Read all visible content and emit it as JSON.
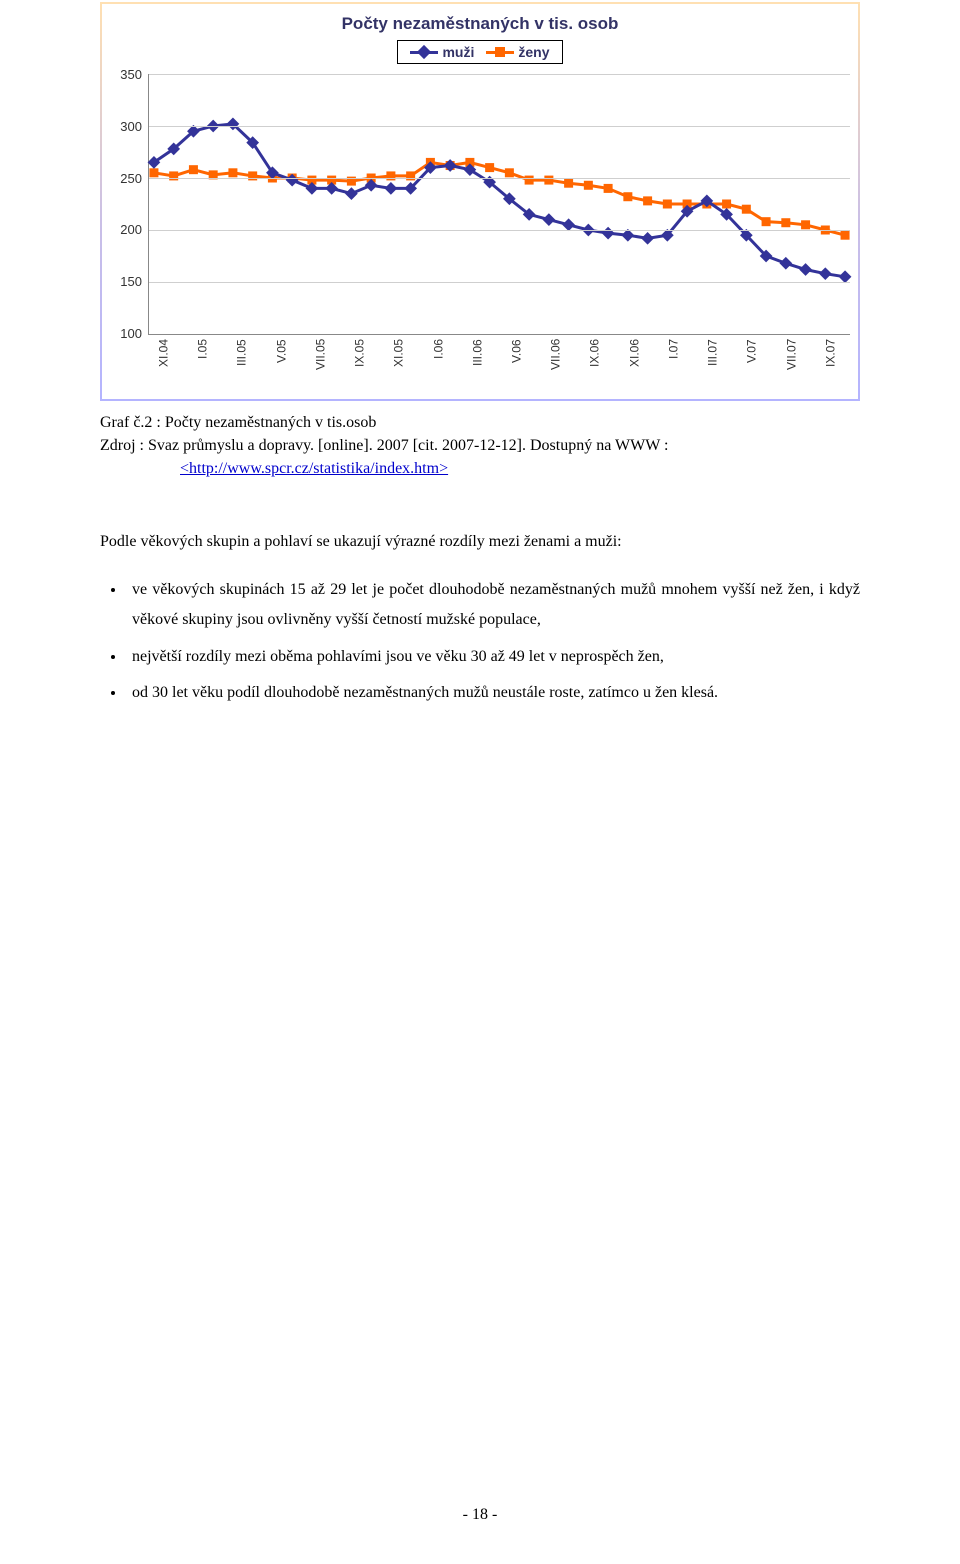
{
  "chart": {
    "type": "line",
    "title": "Počty nezaměstnaných v tis. osob",
    "title_fontsize": 17,
    "title_color": "#333366",
    "border_gradient": [
      "#ffe0b2",
      "#cabfe6",
      "#b4b4ff"
    ],
    "background_color": "#ffffff",
    "legend": {
      "items": [
        {
          "label": "muži",
          "color": "#333399",
          "marker": "diamond"
        },
        {
          "label": "ženy",
          "color": "#ff6600",
          "marker": "square"
        }
      ],
      "border_color": "#000000",
      "font_color": "#333366",
      "fontsize": 14
    },
    "y_axis": {
      "min": 100,
      "max": 350,
      "tick_step": 50,
      "ticks": [
        100,
        150,
        200,
        250,
        300,
        350
      ],
      "label_fontsize": 13,
      "grid_color": "#cfcfcf"
    },
    "x_axis": {
      "labels": [
        "XI.04",
        "I.05",
        "III.05",
        "V.05",
        "VII.05",
        "IX.05",
        "XI.05",
        "I.06",
        "III.06",
        "V.06",
        "VII.06",
        "IX.06",
        "XI.06",
        "I.07",
        "III.07",
        "V.07",
        "VII.07",
        "IX.07"
      ],
      "per_label_points": 2,
      "label_fontsize": 12
    },
    "series": {
      "muzi": {
        "color": "#333399",
        "line_width": 3,
        "marker": "diamond",
        "marker_size": 9,
        "values": [
          265,
          278,
          295,
          300,
          302,
          284,
          255,
          248,
          240,
          240,
          235,
          243,
          240,
          240,
          260,
          262,
          258,
          246,
          230,
          215,
          210,
          205,
          200,
          197,
          195,
          192,
          195,
          218,
          228,
          215,
          195,
          175,
          168,
          162,
          158,
          155
        ]
      },
      "zeny": {
        "color": "#ff6600",
        "line_width": 3,
        "marker": "square",
        "marker_size": 9,
        "values": [
          255,
          252,
          258,
          253,
          255,
          252,
          250,
          250,
          248,
          248,
          247,
          250,
          252,
          252,
          265,
          262,
          265,
          260,
          255,
          248,
          248,
          245,
          243,
          240,
          232,
          228,
          225,
          225,
          225,
          225,
          220,
          208,
          207,
          205,
          200,
          195
        ]
      }
    }
  },
  "caption": {
    "line1_prefix": "Graf č.2  : ",
    "line1_text": "Počty nezaměstnaných v tis.osob",
    "line2_prefix": "Zdroj : ",
    "line2_text": "Svaz průmyslu a dopravy. [online]. 2007 [cit. 2007-12-12]. Dostupný na WWW :",
    "link_text": "<http://www.spcr.cz/statistika/index.htm>",
    "link_color": "#0000cc"
  },
  "body": {
    "intro": "Podle věkových skupin a pohlaví se ukazují výrazné rozdíly mezi ženami a muži:",
    "bullets": [
      "ve věkových skupinách 15 až 29 let je počet dlouhodobě nezaměstnaných mužů mnohem vyšší než žen, i když věkové skupiny jsou ovlivněny vyšší četností mužské populace,",
      "největší rozdíly mezi oběma pohlavími jsou ve věku 30 až 49 let v neprospěch žen,",
      "od 30 let věku podíl dlouhodobě nezaměstnaných mužů neustále roste, zatímco u žen klesá."
    ]
  },
  "page_number": "- 18 -"
}
